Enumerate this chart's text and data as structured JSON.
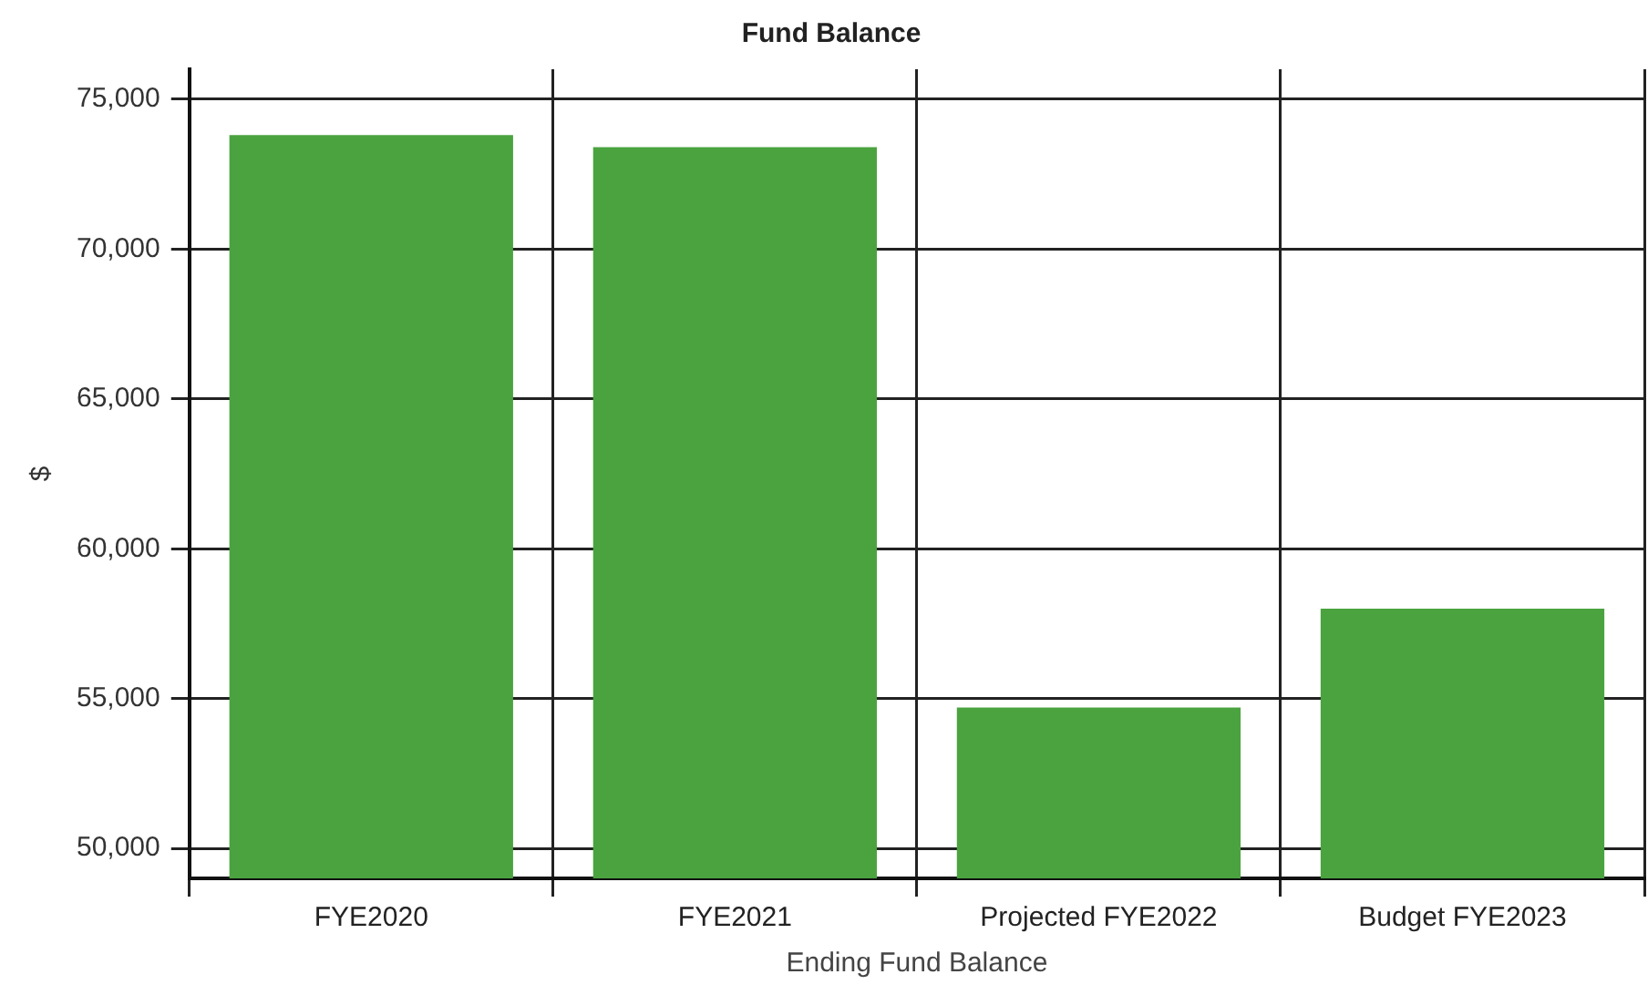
{
  "chart_data": {
    "type": "bar",
    "title": "Fund Balance",
    "xlabel": "Ending Fund Balance",
    "ylabel": "$",
    "categories": [
      "FYE2020",
      "FYE2021",
      "Projected FYE2022",
      "Budget FYE2023"
    ],
    "values": [
      73800,
      73400,
      54700,
      58000
    ],
    "color": "#4aa33f",
    "ylim": [
      49000,
      76000
    ],
    "yticks": [
      {
        "value": 50000,
        "label": "50,000"
      },
      {
        "value": 55000,
        "label": "55,000"
      },
      {
        "value": 60000,
        "label": "60,000"
      },
      {
        "value": 65000,
        "label": "65,000"
      },
      {
        "value": 70000,
        "label": "70,000"
      },
      {
        "value": 75000,
        "label": "75,000"
      }
    ],
    "grid": true,
    "legend": false
  }
}
